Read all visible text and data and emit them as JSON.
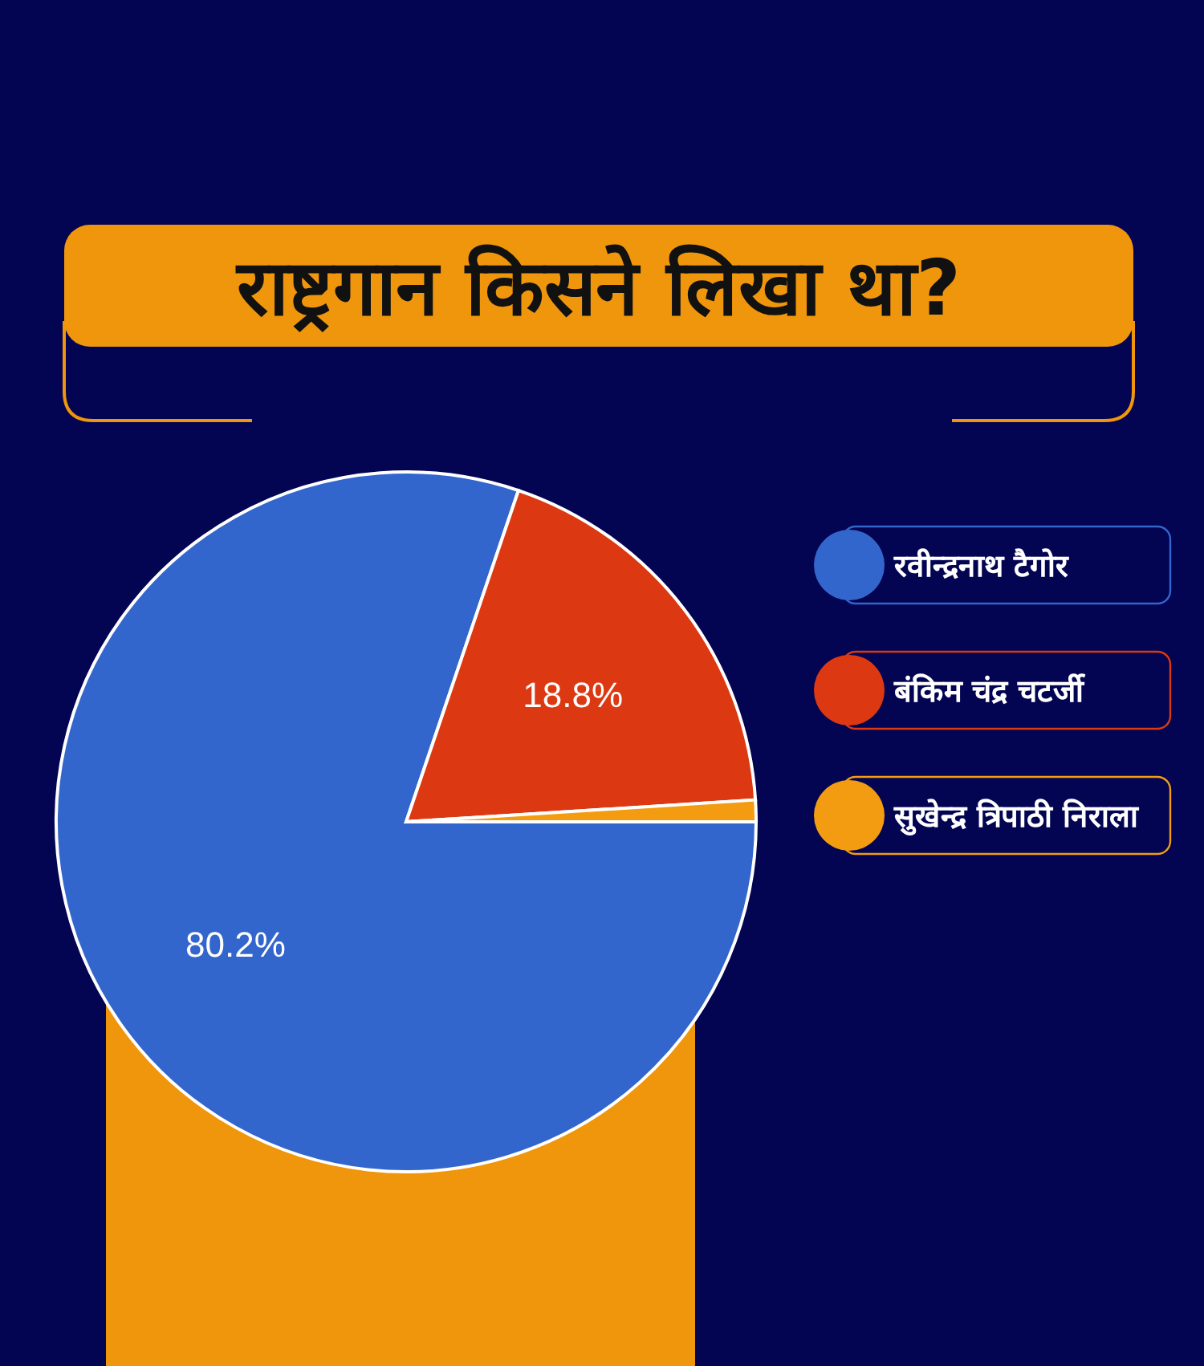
{
  "chart_data": {
    "type": "pie",
    "title": "राष्ट्रगान किसने लिखा था?",
    "categories": [
      "रवीन्द्रनाथ टैगोर",
      "बंकिम चंद्र चटर्जी",
      "सुखेन्द्र त्रिपाठी निराला"
    ],
    "values": [
      80.2,
      18.8,
      1.0
    ],
    "colors": [
      "#3366cc",
      "#dc3912",
      "#f39c12"
    ],
    "value_labels": [
      "80.2%",
      "18.8%",
      null
    ],
    "legend": "right"
  }
}
